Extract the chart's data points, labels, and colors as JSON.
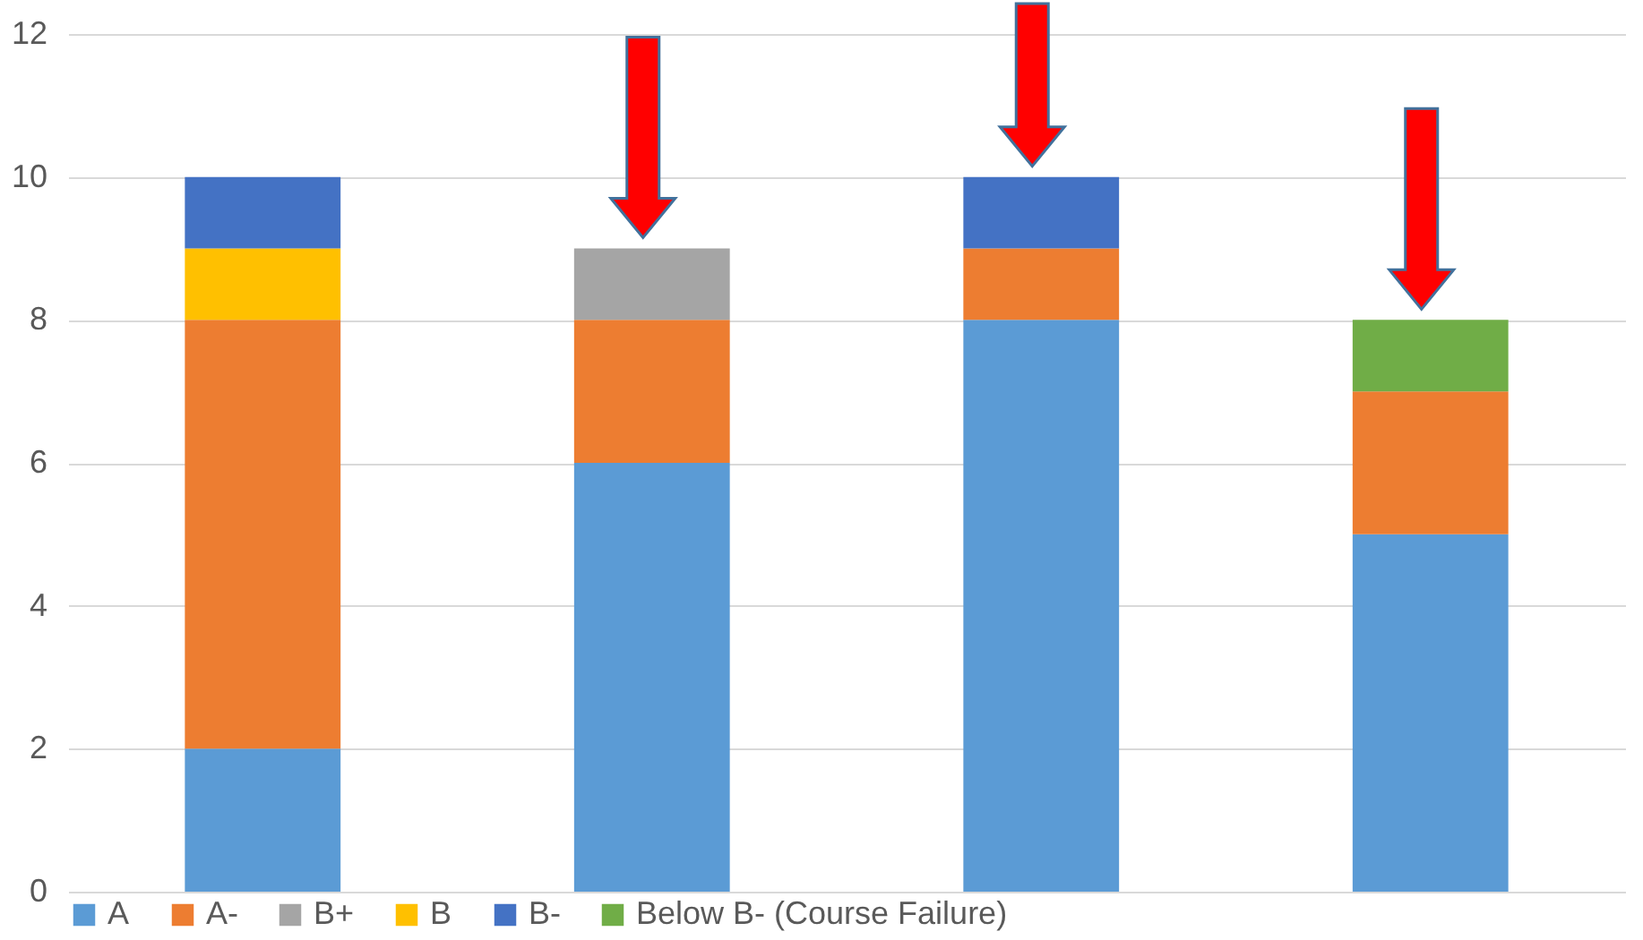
{
  "chart_data": {
    "type": "bar",
    "stacked": true,
    "categories": [
      null,
      null,
      null,
      null
    ],
    "series": [
      {
        "name": "A",
        "color": "#5b9bd5",
        "values": [
          2,
          6,
          8,
          5
        ]
      },
      {
        "name": "A-",
        "color": "#ed7d31",
        "values": [
          6,
          2,
          1,
          2
        ]
      },
      {
        "name": "B+",
        "color": "#a5a5a5",
        "values": [
          0,
          1,
          0,
          0
        ]
      },
      {
        "name": "B",
        "color": "#ffc000",
        "values": [
          1,
          0,
          0,
          0
        ]
      },
      {
        "name": "B-",
        "color": "#4472c4",
        "values": [
          1,
          0,
          1,
          0
        ]
      },
      {
        "name": "Below B- (Course Failure)",
        "color": "#70ad47",
        "values": [
          0,
          0,
          0,
          1
        ]
      }
    ],
    "ylim": [
      0,
      12
    ],
    "yticks": [
      0,
      2,
      4,
      6,
      8,
      10,
      12
    ],
    "grid": "y",
    "legend": "bottom",
    "tick_labels": "y"
  }
}
